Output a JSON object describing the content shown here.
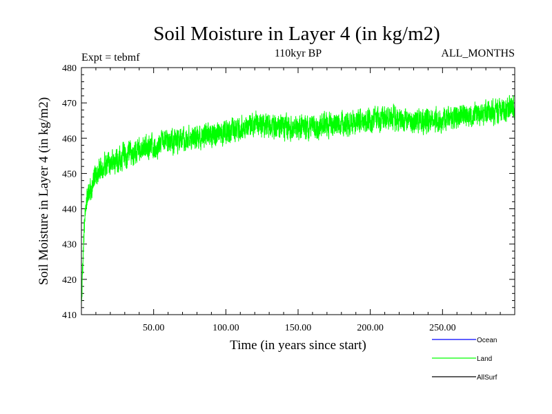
{
  "chart_data": {
    "type": "line",
    "title": "Soil Moisture in Layer 4 (in kg/m2)",
    "subtitle": "110kyr BP",
    "left_label": "Expt = tebmf",
    "right_label": "ALL_MONTHS",
    "xlabel": "Time (in years since start)",
    "ylabel": "Soil Moisture in Layer 4 (in kg/m2)",
    "xlim": [
      0,
      300
    ],
    "ylim": [
      410,
      480
    ],
    "x_ticks": [
      50,
      100,
      150,
      200,
      250
    ],
    "x_tick_labels": [
      "50.00",
      "100.00",
      "150.00",
      "200.00",
      "250.00"
    ],
    "y_ticks": [
      410,
      420,
      430,
      440,
      450,
      460,
      470,
      480
    ],
    "y_tick_labels": [
      "410",
      "420",
      "430",
      "440",
      "450",
      "460",
      "470",
      "480"
    ],
    "legend": [
      {
        "name": "Ocean",
        "color": "#0000ff"
      },
      {
        "name": "Land",
        "color": "#00ff00"
      },
      {
        "name": "AllSurf",
        "color": "#000000"
      }
    ],
    "series": [
      {
        "name": "Land",
        "color": "#00ff00",
        "noise_amplitude": 3,
        "trend_x": [
          0,
          1,
          2,
          3,
          5,
          8,
          12,
          20,
          30,
          50,
          75,
          100,
          120,
          140,
          160,
          180,
          200,
          215,
          230,
          250,
          270,
          285,
          300
        ],
        "trend_y": [
          412,
          425,
          435,
          441,
          445,
          448,
          451,
          453,
          455,
          458,
          460,
          461.5,
          464,
          463,
          463,
          464,
          465,
          466,
          464.5,
          465.5,
          467,
          467.5,
          469
        ]
      }
    ]
  }
}
